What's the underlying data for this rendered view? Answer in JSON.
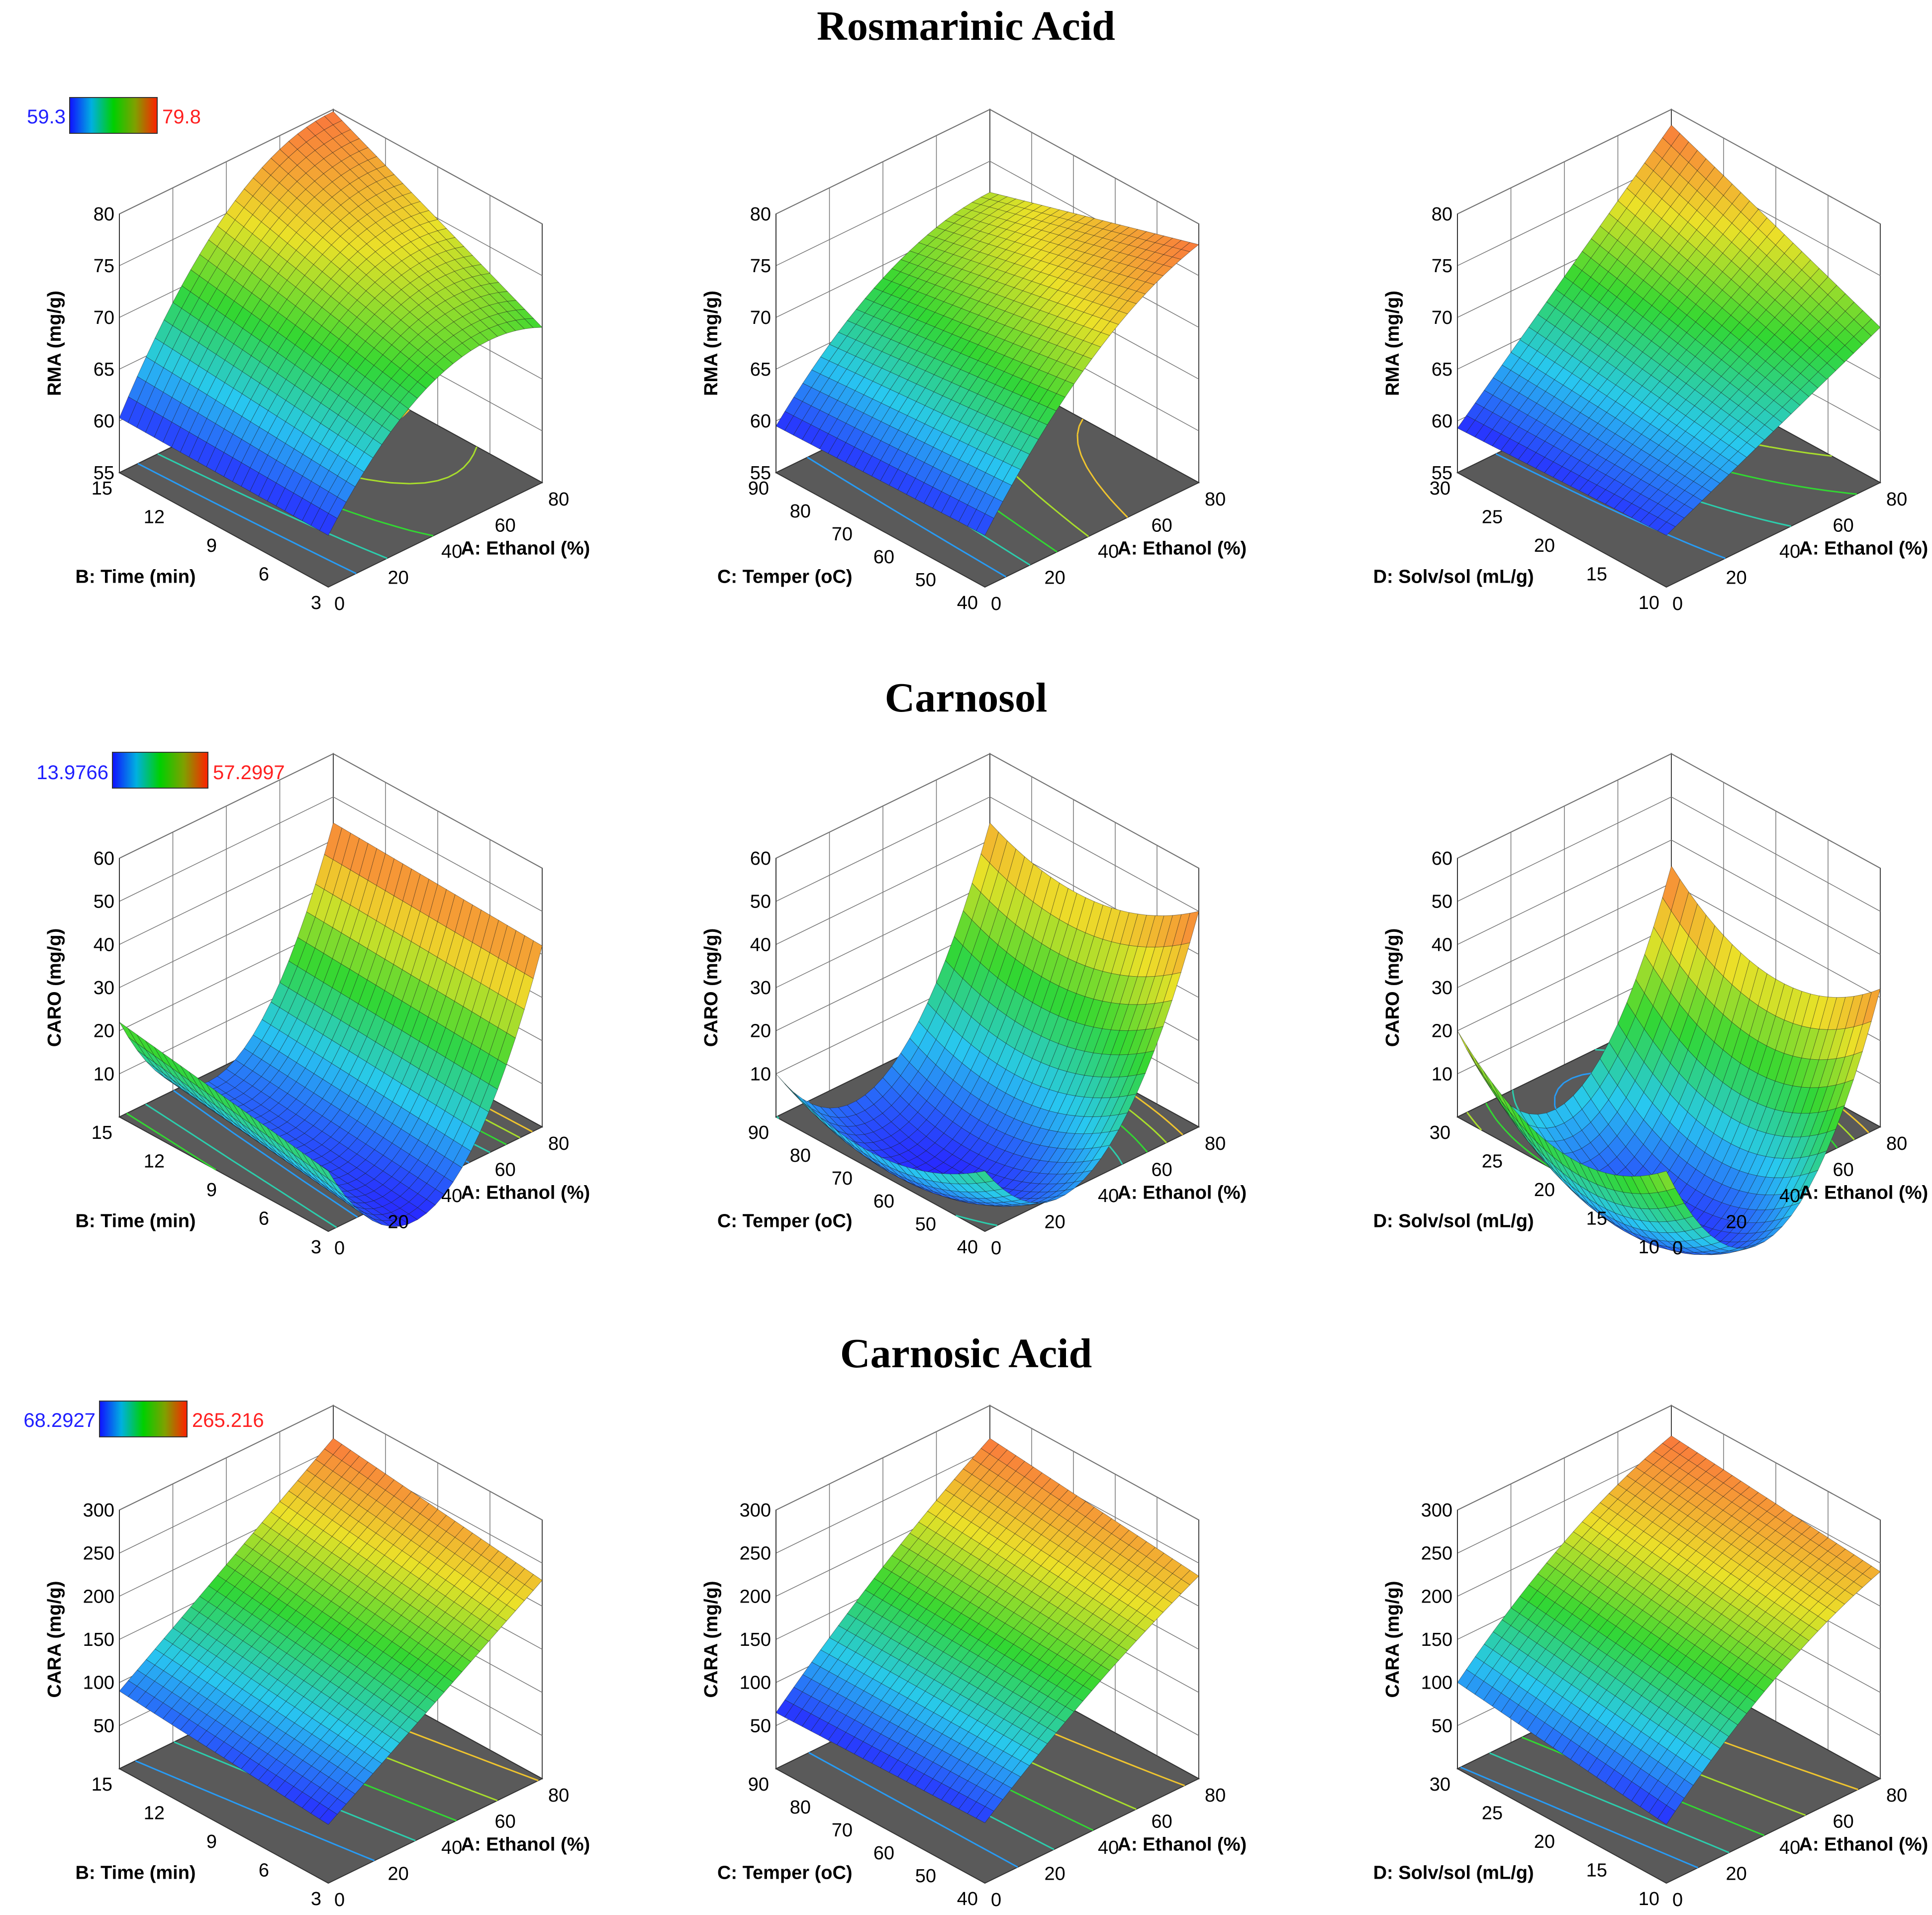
{
  "figure": {
    "sections": [
      {
        "title": "Rosmarinic Acid",
        "colorbar": {
          "min": "59.3",
          "max": "79.8"
        }
      },
      {
        "title": "Carnosol",
        "colorbar": {
          "min": "13.9766",
          "max": "57.2997"
        }
      },
      {
        "title": "Carnosic Acid",
        "colorbar": {
          "min": "68.2927",
          "max": "265.216"
        }
      }
    ]
  },
  "chart_data": [
    {
      "type": "surface3d",
      "title": "Rosmarinic Acid",
      "zlabel": "RMA (mg/g)",
      "zlim": [
        55,
        80
      ],
      "zticks": [
        "55",
        "60",
        "65",
        "70",
        "75",
        "80"
      ],
      "xlabel": "A: Ethanol (%)",
      "xlim": [
        0,
        80
      ],
      "xticks": [
        "0",
        "20",
        "40",
        "60",
        "80"
      ],
      "ylabel": "B: Time (min)",
      "ylim": [
        3,
        15
      ],
      "yticks": [
        "3",
        "6",
        "9",
        "12",
        "15"
      ],
      "corners": {
        "x0y0": 60.0,
        "x1y0": 70.0,
        "x0y1": 60.3,
        "x1y1": 79.8
      },
      "curvature": {
        "x": 5.0,
        "y": 0.0
      },
      "interaction": 0.0
    },
    {
      "type": "surface3d",
      "title": "Rosmarinic Acid",
      "zlabel": "RMA (mg/g)",
      "zlim": [
        55,
        80
      ],
      "zticks": [
        "55",
        "60",
        "65",
        "70",
        "75",
        "80"
      ],
      "xlabel": "A: Ethanol (%)",
      "xlim": [
        0,
        80
      ],
      "xticks": [
        "0",
        "20",
        "40",
        "60",
        "80"
      ],
      "ylabel": "C: Temper (oC)",
      "ylim": [
        40,
        90
      ],
      "yticks": [
        "40",
        "50",
        "60",
        "70",
        "80",
        "90"
      ],
      "corners": {
        "x0y0": 60.0,
        "x1y0": 78.0,
        "x0y1": 59.5,
        "x1y1": 72.0
      },
      "curvature": {
        "x": 3.0,
        "y": 0.0
      },
      "interaction": 0.0
    },
    {
      "type": "surface3d",
      "title": "Rosmarinic Acid",
      "zlabel": "RMA (mg/g)",
      "zlim": [
        55,
        80
      ],
      "zticks": [
        "55",
        "60",
        "65",
        "70",
        "75",
        "80"
      ],
      "xlabel": "A: Ethanol (%)",
      "xlim": [
        0,
        80
      ],
      "xticks": [
        "0",
        "20",
        "40",
        "60",
        "80"
      ],
      "ylabel": "D: Solv/sol (mL/g)",
      "ylim": [
        10,
        30
      ],
      "yticks": [
        "10",
        "15",
        "20",
        "25",
        "30"
      ],
      "corners": {
        "x0y0": 60.0,
        "x1y0": 70.0,
        "x0y1": 59.3,
        "x1y1": 78.5
      },
      "curvature": {
        "x": 0.0,
        "y": 0.0
      },
      "interaction": 0.0
    },
    {
      "type": "surface3d",
      "title": "Carnosol",
      "zlabel": "CARO (mg/g)",
      "zlim": [
        0,
        60
      ],
      "zticks": [
        "10",
        "20",
        "30",
        "40",
        "50",
        "60"
      ],
      "xlabel": "A: Ethanol (%)",
      "xlim": [
        0,
        80
      ],
      "xticks": [
        "0",
        "20",
        "40",
        "60",
        "80"
      ],
      "ylabel": "B: Time (min)",
      "ylim": [
        3,
        15
      ],
      "yticks": [
        "3",
        "6",
        "9",
        "12",
        "15"
      ],
      "corners": {
        "x0y0": 14.0,
        "x1y0": 42.0,
        "x0y1": 22.0,
        "x1y1": 44.0
      },
      "curvature": {
        "x": -34.0,
        "y": 0.0
      },
      "interaction": 0.0
    },
    {
      "type": "surface3d",
      "title": "Carnosol",
      "zlabel": "CARO (mg/g)",
      "zlim": [
        0,
        60
      ],
      "zticks": [
        "10",
        "20",
        "30",
        "40",
        "50",
        "60"
      ],
      "xlabel": "A: Ethanol (%)",
      "xlim": [
        0,
        80
      ],
      "xticks": [
        "0",
        "20",
        "40",
        "60",
        "80"
      ],
      "ylabel": "C: Temper (oC)",
      "ylim": [
        40,
        90
      ],
      "yticks": [
        "40",
        "50",
        "60",
        "70",
        "80",
        "90"
      ],
      "corners": {
        "x0y0": 14.0,
        "x1y0": 50.0,
        "x0y1": 10.0,
        "x1y1": 44.0
      },
      "curvature": {
        "x": -30.0,
        "y": -8.0
      },
      "interaction": 0.0
    },
    {
      "type": "surface3d",
      "title": "Carnosol",
      "zlabel": "CARO (mg/g)",
      "zlim": [
        0,
        60
      ],
      "zticks": [
        "10",
        "20",
        "30",
        "40",
        "50",
        "60"
      ],
      "xlabel": "A: Ethanol (%)",
      "xlim": [
        0,
        80
      ],
      "xticks": [
        "0",
        "20",
        "40",
        "60",
        "80"
      ],
      "ylabel": "D: Solv/sol (mL/g)",
      "ylim": [
        10,
        30
      ],
      "yticks": [
        "10",
        "15",
        "20",
        "25",
        "30"
      ],
      "corners": {
        "x0y0": 14.0,
        "x1y0": 32.0,
        "x0y1": 20.0,
        "x1y1": 34.0
      },
      "curvature": {
        "x": -36.0,
        "y": -12.0
      },
      "interaction": 0.0
    },
    {
      "type": "surface3d",
      "title": "Carnosic Acid",
      "zlabel": "CARA (mg/g)",
      "zlim": [
        0,
        300
      ],
      "zticks": [
        "50",
        "100",
        "150",
        "200",
        "250",
        "300"
      ],
      "xlabel": "A: Ethanol (%)",
      "xlim": [
        0,
        80
      ],
      "xticks": [
        "0",
        "20",
        "40",
        "60",
        "80"
      ],
      "ylabel": "B: Time (min)",
      "ylim": [
        3,
        15
      ],
      "yticks": [
        "3",
        "6",
        "9",
        "12",
        "15"
      ],
      "corners": {
        "x0y0": 68.0,
        "x1y0": 230.0,
        "x0y1": 90.0,
        "x1y1": 262.0
      },
      "curvature": {
        "x": 0.0,
        "y": 0.0
      },
      "interaction": 0.0
    },
    {
      "type": "surface3d",
      "title": "Carnosic Acid",
      "zlabel": "CARA (mg/g)",
      "zlim": [
        0,
        300
      ],
      "zticks": [
        "50",
        "100",
        "150",
        "200",
        "250",
        "300"
      ],
      "xlabel": "A: Ethanol (%)",
      "xlim": [
        0,
        80
      ],
      "xticks": [
        "0",
        "20",
        "40",
        "60",
        "80"
      ],
      "ylabel": "C: Temper (oC)",
      "ylim": [
        40,
        90
      ],
      "yticks": [
        "40",
        "50",
        "60",
        "70",
        "80",
        "90"
      ],
      "corners": {
        "x0y0": 70.0,
        "x1y0": 235.0,
        "x0y1": 65.0,
        "x1y1": 262.0
      },
      "curvature": {
        "x": 10.0,
        "y": 0.0
      },
      "interaction": 0.0
    },
    {
      "type": "surface3d",
      "title": "Carnosic Acid",
      "zlabel": "CARA (mg/g)",
      "zlim": [
        0,
        300
      ],
      "zticks": [
        "50",
        "100",
        "150",
        "200",
        "250",
        "300"
      ],
      "xlabel": "A: Ethanol (%)",
      "xlim": [
        0,
        80
      ],
      "xticks": [
        "0",
        "20",
        "40",
        "60",
        "80"
      ],
      "ylabel": "D: Solv/sol (mL/g)",
      "ylim": [
        10,
        30
      ],
      "yticks": [
        "10",
        "15",
        "20",
        "25",
        "30"
      ],
      "corners": {
        "x0y0": 68.0,
        "x1y0": 240.0,
        "x0y1": 100.0,
        "x1y1": 265.0
      },
      "curvature": {
        "x": 20.0,
        "y": 0.0
      },
      "interaction": 0.0
    }
  ]
}
